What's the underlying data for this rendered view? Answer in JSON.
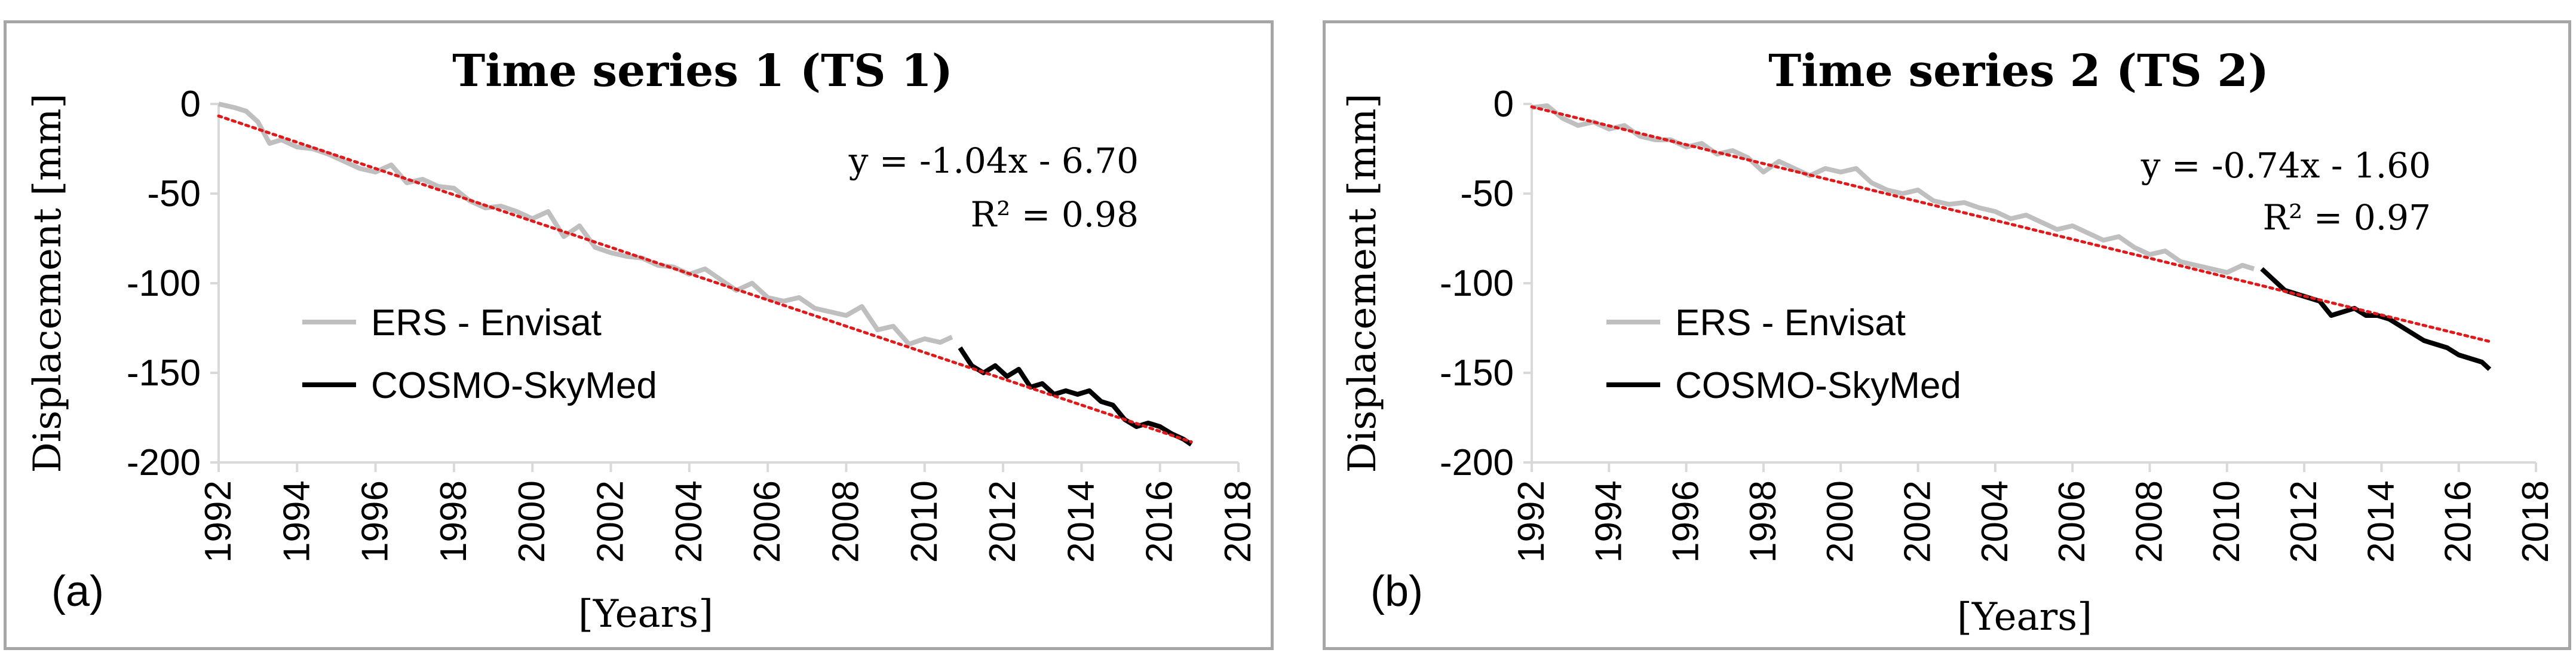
{
  "colors": {
    "ers": "#bfbfbf",
    "cosmo": "#000000",
    "trend": "#e0191b",
    "frame": "#a6a6a6",
    "axis": "#d9d9d9"
  },
  "chart_data": [
    {
      "type": "line",
      "panel_label": "(a)",
      "title": "Time series 1 (TS 1)",
      "xlabel": "[Years]",
      "ylabel": "Displacement [mm]",
      "xlim": [
        1992,
        2018
      ],
      "ylim": [
        -200,
        0
      ],
      "x_ticks": [
        "1992",
        "1994",
        "1996",
        "1998",
        "2000",
        "2002",
        "2004",
        "2006",
        "2008",
        "2010",
        "2012",
        "2014",
        "2016",
        "2018"
      ],
      "y_ticks": [
        "0",
        "-50",
        "-100",
        "-150",
        "-200"
      ],
      "equation": "y = -1.04x - 6.70",
      "r2": "R² = 0.98",
      "legend": [
        "ERS - Envisat",
        "COSMO-SkyMed"
      ],
      "trend": {
        "x": [
          1992,
          2016.8
        ],
        "y": [
          -6.7,
          -188.5
        ]
      },
      "series": [
        {
          "name": "ERS - Envisat",
          "x": [
            1992.0,
            1992.4,
            1992.7,
            1993.0,
            1993.3,
            1993.6,
            1994.0,
            1994.4,
            1994.8,
            1995.2,
            1995.6,
            1996.0,
            1996.4,
            1996.8,
            1997.2,
            1997.6,
            1998.0,
            1998.4,
            1998.8,
            1999.2,
            1999.6,
            2000.0,
            2000.4,
            2000.8,
            2001.2,
            2001.6,
            2002.0,
            2002.4,
            2002.8,
            2003.2,
            2003.6,
            2004.0,
            2004.4,
            2004.8,
            2005.2,
            2005.6,
            2006.0,
            2006.4,
            2006.8,
            2007.2,
            2007.6,
            2008.0,
            2008.4,
            2008.8,
            2009.2,
            2009.6,
            2010.0,
            2010.4,
            2010.7
          ],
          "y": [
            0,
            -2,
            -4,
            -10,
            -22,
            -20,
            -24,
            -25,
            -28,
            -32,
            -36,
            -38,
            -34,
            -44,
            -42,
            -46,
            -47,
            -54,
            -58,
            -57,
            -60,
            -64,
            -60,
            -74,
            -68,
            -80,
            -83,
            -85,
            -86,
            -90,
            -91,
            -95,
            -92,
            -98,
            -104,
            -100,
            -108,
            -110,
            -108,
            -114,
            -116,
            -118,
            -113,
            -126,
            -124,
            -134,
            -131,
            -133,
            -130
          ]
        },
        {
          "name": "COSMO-SkyMed",
          "x": [
            2010.9,
            2011.2,
            2011.5,
            2011.8,
            2012.1,
            2012.4,
            2012.7,
            2013.0,
            2013.3,
            2013.6,
            2013.9,
            2014.2,
            2014.5,
            2014.8,
            2015.1,
            2015.4,
            2015.7,
            2016.0,
            2016.3,
            2016.6,
            2016.8
          ],
          "y": [
            -136,
            -146,
            -150,
            -146,
            -152,
            -148,
            -158,
            -156,
            -162,
            -160,
            -162,
            -160,
            -166,
            -168,
            -176,
            -180,
            -178,
            -180,
            -184,
            -187,
            -190
          ]
        }
      ]
    },
    {
      "type": "line",
      "panel_label": "(b)",
      "title": "Time series 2 (TS 2)",
      "xlabel": "[Years]",
      "ylabel": "Displacement [mm]",
      "xlim": [
        1992,
        2018
      ],
      "ylim": [
        -200,
        0
      ],
      "x_ticks": [
        "1992",
        "1994",
        "1996",
        "1998",
        "2000",
        "2002",
        "2004",
        "2006",
        "2008",
        "2010",
        "2012",
        "2014",
        "2016",
        "2018"
      ],
      "y_ticks": [
        "0",
        "-50",
        "-100",
        "-150",
        "-200"
      ],
      "equation": "y = -0.74x - 1.60",
      "r2": "R² = 0.97",
      "legend": [
        "ERS - Envisat",
        "COSMO-SkyMed"
      ],
      "trend": {
        "x": [
          1992,
          2016.8
        ],
        "y": [
          -1.6,
          -132.5
        ]
      },
      "series": [
        {
          "name": "ERS - Envisat",
          "x": [
            1992.0,
            1992.4,
            1992.8,
            1993.2,
            1993.6,
            1994.0,
            1994.4,
            1994.8,
            1995.2,
            1995.6,
            1996.0,
            1996.4,
            1996.8,
            1997.2,
            1997.6,
            1998.0,
            1998.4,
            1998.8,
            1999.2,
            1999.6,
            2000.0,
            2000.4,
            2000.8,
            2001.2,
            2001.6,
            2002.0,
            2002.4,
            2002.8,
            2003.2,
            2003.6,
            2004.0,
            2004.4,
            2004.8,
            2005.2,
            2005.6,
            2006.0,
            2006.4,
            2006.8,
            2007.2,
            2007.6,
            2008.0,
            2008.4,
            2008.8,
            2009.2,
            2009.6,
            2010.0,
            2010.4,
            2010.7
          ],
          "y": [
            -2,
            -1,
            -8,
            -12,
            -10,
            -14,
            -12,
            -18,
            -20,
            -20,
            -24,
            -22,
            -28,
            -26,
            -30,
            -38,
            -32,
            -36,
            -40,
            -36,
            -38,
            -36,
            -44,
            -48,
            -50,
            -48,
            -54,
            -56,
            -55,
            -58,
            -60,
            -64,
            -62,
            -66,
            -70,
            -68,
            -72,
            -76,
            -74,
            -80,
            -84,
            -82,
            -88,
            -90,
            -92,
            -94,
            -90,
            -92
          ]
        },
        {
          "name": "COSMO-SkyMed",
          "x": [
            2010.9,
            2011.2,
            2011.5,
            2011.8,
            2012.1,
            2012.4,
            2012.7,
            2013.0,
            2013.3,
            2013.6,
            2013.9,
            2014.2,
            2014.5,
            2014.8,
            2015.1,
            2015.4,
            2015.7,
            2016.0,
            2016.3,
            2016.6,
            2016.8
          ],
          "y": [
            -92,
            -98,
            -104,
            -106,
            -108,
            -110,
            -118,
            -116,
            -114,
            -118,
            -118,
            -120,
            -124,
            -128,
            -132,
            -134,
            -136,
            -140,
            -142,
            -144,
            -148
          ]
        }
      ]
    }
  ]
}
